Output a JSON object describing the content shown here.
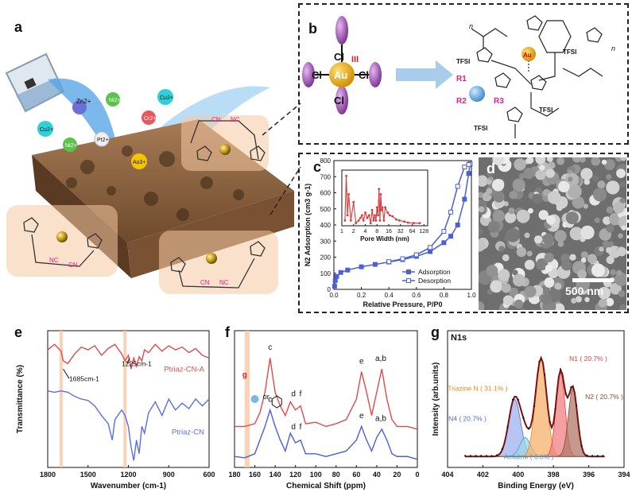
{
  "panels": {
    "a": "a",
    "b": "b",
    "c": "c",
    "d": "d",
    "e": "e",
    "f": "f",
    "g": "g"
  },
  "panel_a": {
    "ions": [
      {
        "label": "Zn2+",
        "color": "#6b6fd6"
      },
      {
        "label": "Ni2+",
        "color": "#5bc24a"
      },
      {
        "label": "Cu2+",
        "color": "#2fd0d6"
      },
      {
        "label": "Cr2+",
        "color": "#e85858"
      },
      {
        "label": "Pt2+",
        "color": "#f0f0f0"
      },
      {
        "label": "Au3+",
        "color": "#f2c500"
      },
      {
        "label": "Ni2+",
        "color": "#5bc24a"
      },
      {
        "label": "Cu2+",
        "color": "#2fd0d6"
      }
    ],
    "linker_labels": [
      "CN",
      "NC"
    ]
  },
  "panel_b": {
    "center": "Au",
    "oxidation": "III",
    "ligand": "Cl",
    "tfsi": "TFSI",
    "r_labels": [
      "R1",
      "R2",
      "R3"
    ],
    "n_label": "n",
    "au_small": "Au"
  },
  "panel_d": {
    "scale": "500 nm"
  },
  "chart_data": [
    {
      "type": "line",
      "title": "",
      "xlabel": "Relative Pressure, P/P0",
      "ylabel": "N2 Adsorption (cm3 g-1)",
      "xlim": [
        0,
        1.0
      ],
      "ylim": [
        0,
        800
      ],
      "xticks": [
        "0.0",
        "0.2",
        "0.4",
        "0.6",
        "0.8",
        "1.0"
      ],
      "yticks": [
        "0",
        "100",
        "200",
        "300",
        "400",
        "500",
        "600",
        "700",
        "800"
      ],
      "legend": "bottom-right",
      "series": [
        {
          "name": "Adsorption",
          "marker": "filled-square",
          "color": "#4a5fd8",
          "x": [
            0.005,
            0.01,
            0.02,
            0.05,
            0.1,
            0.2,
            0.3,
            0.4,
            0.5,
            0.6,
            0.7,
            0.8,
            0.85,
            0.9,
            0.95,
            0.98,
            0.99
          ],
          "y": [
            20,
            55,
            80,
            105,
            120,
            140,
            155,
            170,
            185,
            205,
            235,
            290,
            330,
            400,
            560,
            720,
            780
          ]
        },
        {
          "name": "Desorption",
          "marker": "open-square",
          "color": "#4a5fd8",
          "x": [
            0.99,
            0.98,
            0.95,
            0.9,
            0.85,
            0.8,
            0.7,
            0.6,
            0.5,
            0.4
          ],
          "y": [
            780,
            775,
            760,
            640,
            480,
            360,
            260,
            215,
            190,
            172
          ]
        }
      ],
      "inset": {
        "xlabel": "Pore Width (nm)",
        "xticks": [
          "1",
          "2",
          "4",
          "8",
          "16",
          "32",
          "64",
          "128"
        ],
        "color": "#d63a3a",
        "x": [
          1.2,
          1.3,
          1.4,
          1.5,
          1.7,
          2,
          2.3,
          2.7,
          3,
          3.3,
          3.6,
          4,
          4.5,
          5,
          5.5,
          6,
          6.5,
          7,
          7.5,
          8,
          8.5,
          9,
          9.5,
          10,
          10.5,
          11,
          12,
          13,
          15,
          17,
          20,
          25,
          30,
          40,
          50,
          70,
          100
        ],
        "y": [
          0.1,
          0.95,
          0.2,
          0.6,
          0.1,
          0.45,
          0.05,
          0.1,
          0.15,
          0.2,
          0.1,
          0.25,
          0.15,
          0.2,
          0.05,
          0.3,
          0.1,
          0.2,
          0.1,
          0.35,
          0.2,
          0.7,
          0.1,
          0.6,
          0.3,
          0.35,
          0.1,
          0.35,
          0.25,
          0.2,
          0.18,
          0.12,
          0.1,
          0.08,
          0.06,
          0.05,
          0.05
        ]
      }
    },
    {
      "type": "line",
      "title": "",
      "xlabel": "Wavenumber (cm-1)",
      "ylabel": "Transmittance (%)",
      "xlim": [
        1800,
        600
      ],
      "xticks": [
        "1800",
        "1500",
        "1200",
        "900",
        "600"
      ],
      "annotations": [
        "1685cm-1",
        "1225cm-1"
      ],
      "series": [
        {
          "name": "Ptriaz-CN-A",
          "color": "#e34a4a",
          "x": [
            1800,
            1750,
            1700,
            1685,
            1650,
            1600,
            1550,
            1500,
            1450,
            1400,
            1350,
            1300,
            1250,
            1225,
            1200,
            1180,
            1160,
            1140,
            1120,
            1100,
            1080,
            1050,
            1000,
            950,
            900,
            850,
            800,
            750,
            700,
            650,
            600
          ],
          "y": [
            0.86,
            0.9,
            0.85,
            0.78,
            0.76,
            0.83,
            0.88,
            0.86,
            0.89,
            0.82,
            0.87,
            0.9,
            0.83,
            0.78,
            0.82,
            0.72,
            0.8,
            0.74,
            0.81,
            0.78,
            0.86,
            0.84,
            0.9,
            0.85,
            0.89,
            0.86,
            0.88,
            0.84,
            0.87,
            0.82,
            0.8
          ]
        },
        {
          "name": "Ptriaz-CN",
          "color": "#5a6df0",
          "x": [
            1800,
            1750,
            1700,
            1650,
            1600,
            1550,
            1500,
            1450,
            1400,
            1350,
            1320,
            1300,
            1250,
            1225,
            1200,
            1180,
            1160,
            1140,
            1120,
            1100,
            1080,
            1050,
            1000,
            950,
            900,
            850,
            800,
            750,
            700,
            650,
            600
          ],
          "y": [
            0.56,
            0.55,
            0.56,
            0.55,
            0.52,
            0.5,
            0.49,
            0.45,
            0.38,
            0.32,
            0.2,
            0.35,
            0.42,
            0.38,
            0.3,
            0.15,
            0.05,
            0.2,
            0.1,
            0.3,
            0.25,
            0.4,
            0.48,
            0.38,
            0.5,
            0.42,
            0.47,
            0.43,
            0.5,
            0.45,
            0.5
          ]
        }
      ]
    },
    {
      "type": "line",
      "title": "",
      "xlabel": "Chemical Shift (ppm)",
      "ylabel": "",
      "xlim": [
        180,
        0
      ],
      "xticks": [
        "180",
        "160",
        "140",
        "120",
        "100",
        "80",
        "60",
        "40",
        "20",
        "0"
      ],
      "peak_labels_top": [
        "c",
        "d",
        "f",
        "e",
        "a,b",
        "g"
      ],
      "peak_labels_bottom": [
        "c",
        "d",
        "f",
        "e",
        "a,b"
      ],
      "or_label": "or",
      "series": [
        {
          "name": "top",
          "color": "#e34a4a",
          "x": [
            180,
            170,
            160,
            155,
            150,
            145,
            140,
            135,
            130,
            125,
            120,
            115,
            110,
            100,
            90,
            80,
            70,
            60,
            55,
            50,
            45,
            40,
            35,
            30,
            25,
            20,
            10,
            0
          ],
          "y": [
            0.3,
            0.3,
            0.32,
            0.4,
            0.55,
            0.8,
            0.55,
            0.45,
            0.38,
            0.48,
            0.42,
            0.45,
            0.32,
            0.33,
            0.3,
            0.32,
            0.35,
            0.5,
            0.7,
            0.55,
            0.38,
            0.55,
            0.72,
            0.5,
            0.35,
            0.3,
            0.3,
            0.28
          ]
        },
        {
          "name": "bottom",
          "color": "#4a5fd8",
          "x": [
            180,
            170,
            160,
            155,
            150,
            145,
            140,
            135,
            130,
            125,
            120,
            115,
            110,
            100,
            90,
            80,
            70,
            60,
            55,
            50,
            45,
            40,
            35,
            30,
            25,
            20,
            10,
            0
          ],
          "y": [
            0.08,
            0.07,
            0.1,
            0.2,
            0.3,
            0.42,
            0.3,
            0.2,
            0.12,
            0.25,
            0.18,
            0.2,
            0.1,
            0.1,
            0.08,
            0.1,
            0.12,
            0.2,
            0.3,
            0.2,
            0.12,
            0.22,
            0.28,
            0.2,
            0.1,
            0.08,
            0.08,
            0.06
          ]
        }
      ]
    },
    {
      "type": "area",
      "title": "N1s",
      "xlabel": "Binding  Energy (eV)",
      "ylabel": "Intensity (arb.units)",
      "xlim": [
        404,
        394
      ],
      "xticks": [
        "404",
        "402",
        "400",
        "398",
        "396",
        "394"
      ],
      "components": [
        {
          "label": "N4 ( 20.7% )",
          "center": 400.2,
          "height": 0.42,
          "width": 0.8,
          "color": "#9fb1ee",
          "label_color": "#5468c8"
        },
        {
          "label": "Amidine ( 6.8% )",
          "center": 399.6,
          "height": 0.14,
          "width": 0.7,
          "color": "#9fd6e8",
          "label_color": "#3aa1c8"
        },
        {
          "label": "Triazine N ( 31.1% )",
          "center": 398.7,
          "height": 0.72,
          "width": 0.75,
          "color": "#f6b26b",
          "label_color": "#e08a20"
        },
        {
          "label": "N1 ( 20.7% )",
          "center": 397.6,
          "height": 0.62,
          "width": 0.6,
          "color": "#f08080",
          "label_color": "#e04040"
        },
        {
          "label": "N2 ( 20.7% )",
          "center": 396.9,
          "height": 0.5,
          "width": 0.6,
          "color": "#b0786a",
          "label_color": "#8a4a3a"
        }
      ]
    }
  ]
}
